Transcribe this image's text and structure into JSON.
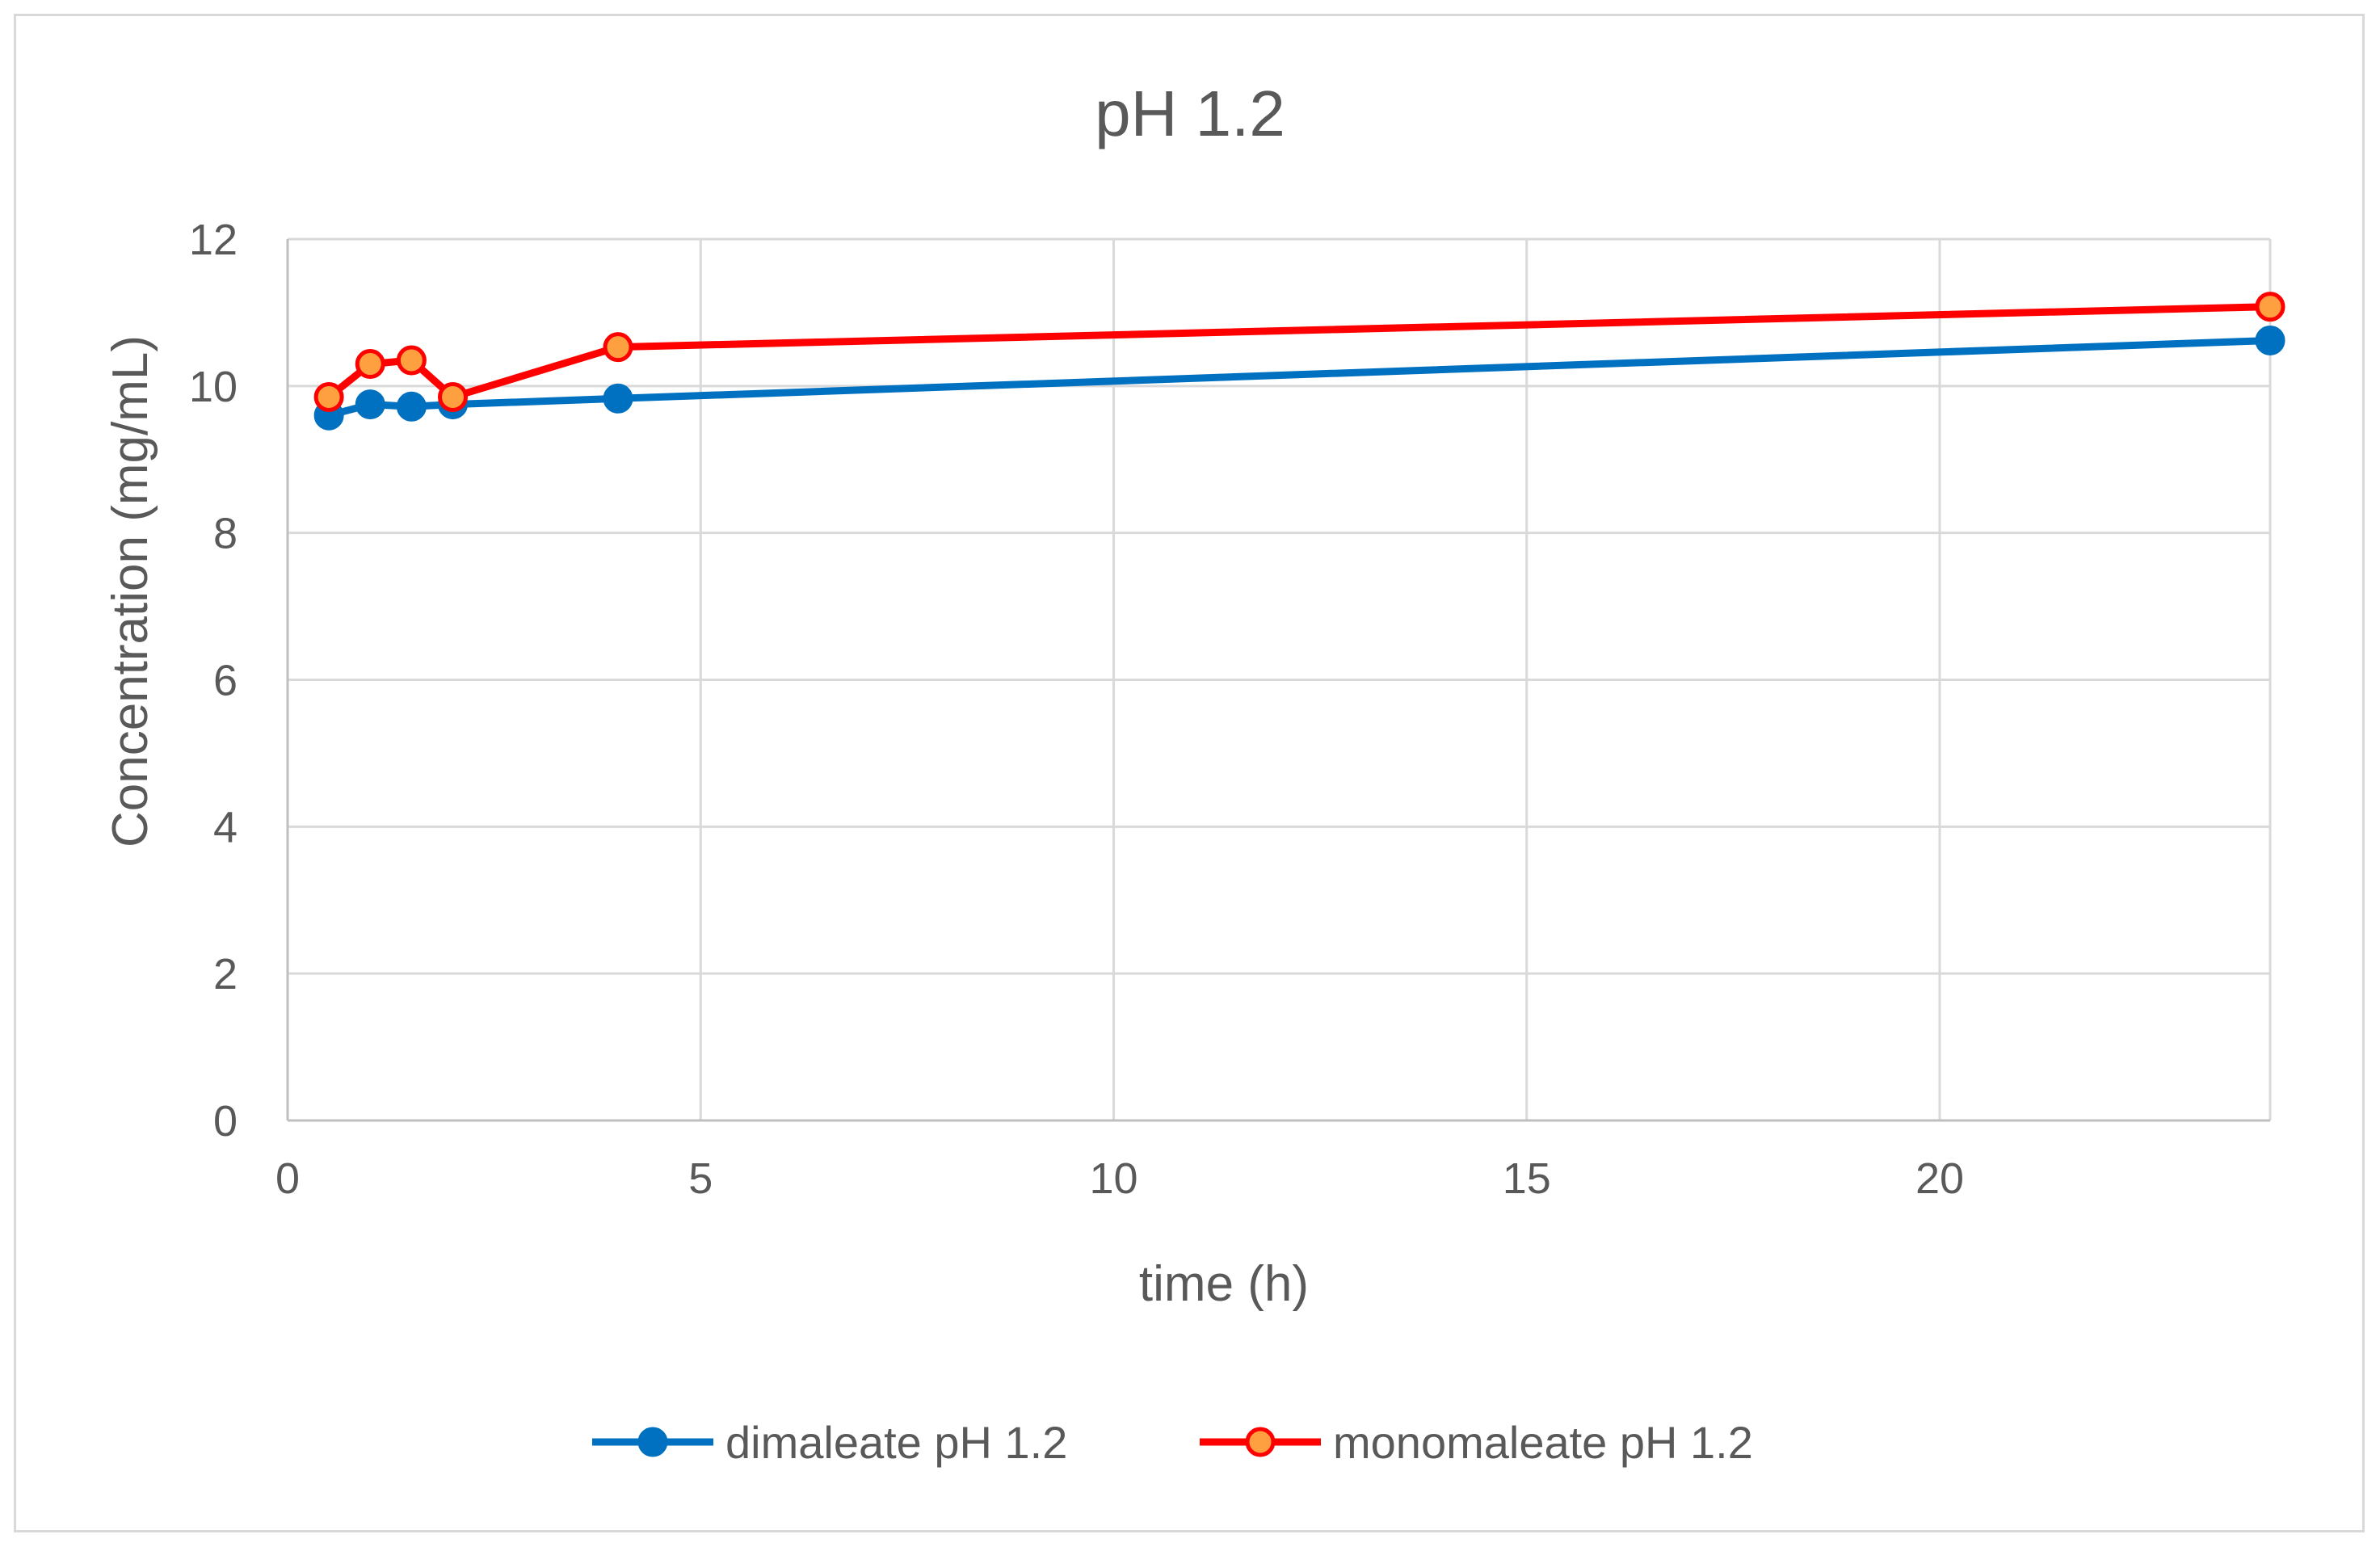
{
  "chart_data": {
    "type": "line",
    "title": "pH 1.2",
    "xlabel": "time (h)",
    "ylabel": "Concentration (mg/mL)",
    "xlim": [
      0,
      24
    ],
    "ylim": [
      0,
      12
    ],
    "x_ticks": [
      0,
      5,
      10,
      15,
      20
    ],
    "y_ticks": [
      0,
      2,
      4,
      6,
      8,
      10,
      12
    ],
    "grid": true,
    "legend_position": "bottom",
    "series": [
      {
        "name": "dimaleate pH 1.2",
        "color": "#0070c0",
        "marker_fill": "#0070c0",
        "marker_stroke": "#0070c0",
        "x": [
          0.5,
          1,
          1.5,
          2,
          4,
          24
        ],
        "y": [
          9.6,
          9.75,
          9.72,
          9.75,
          9.83,
          10.62
        ]
      },
      {
        "name": "monomaleate pH 1.2",
        "color": "#ff0000",
        "marker_fill": "#ffa040",
        "marker_stroke": "#ff0000",
        "x": [
          0.5,
          1,
          1.5,
          2,
          4,
          24
        ],
        "y": [
          9.85,
          10.3,
          10.35,
          9.85,
          10.53,
          11.08
        ]
      }
    ]
  }
}
